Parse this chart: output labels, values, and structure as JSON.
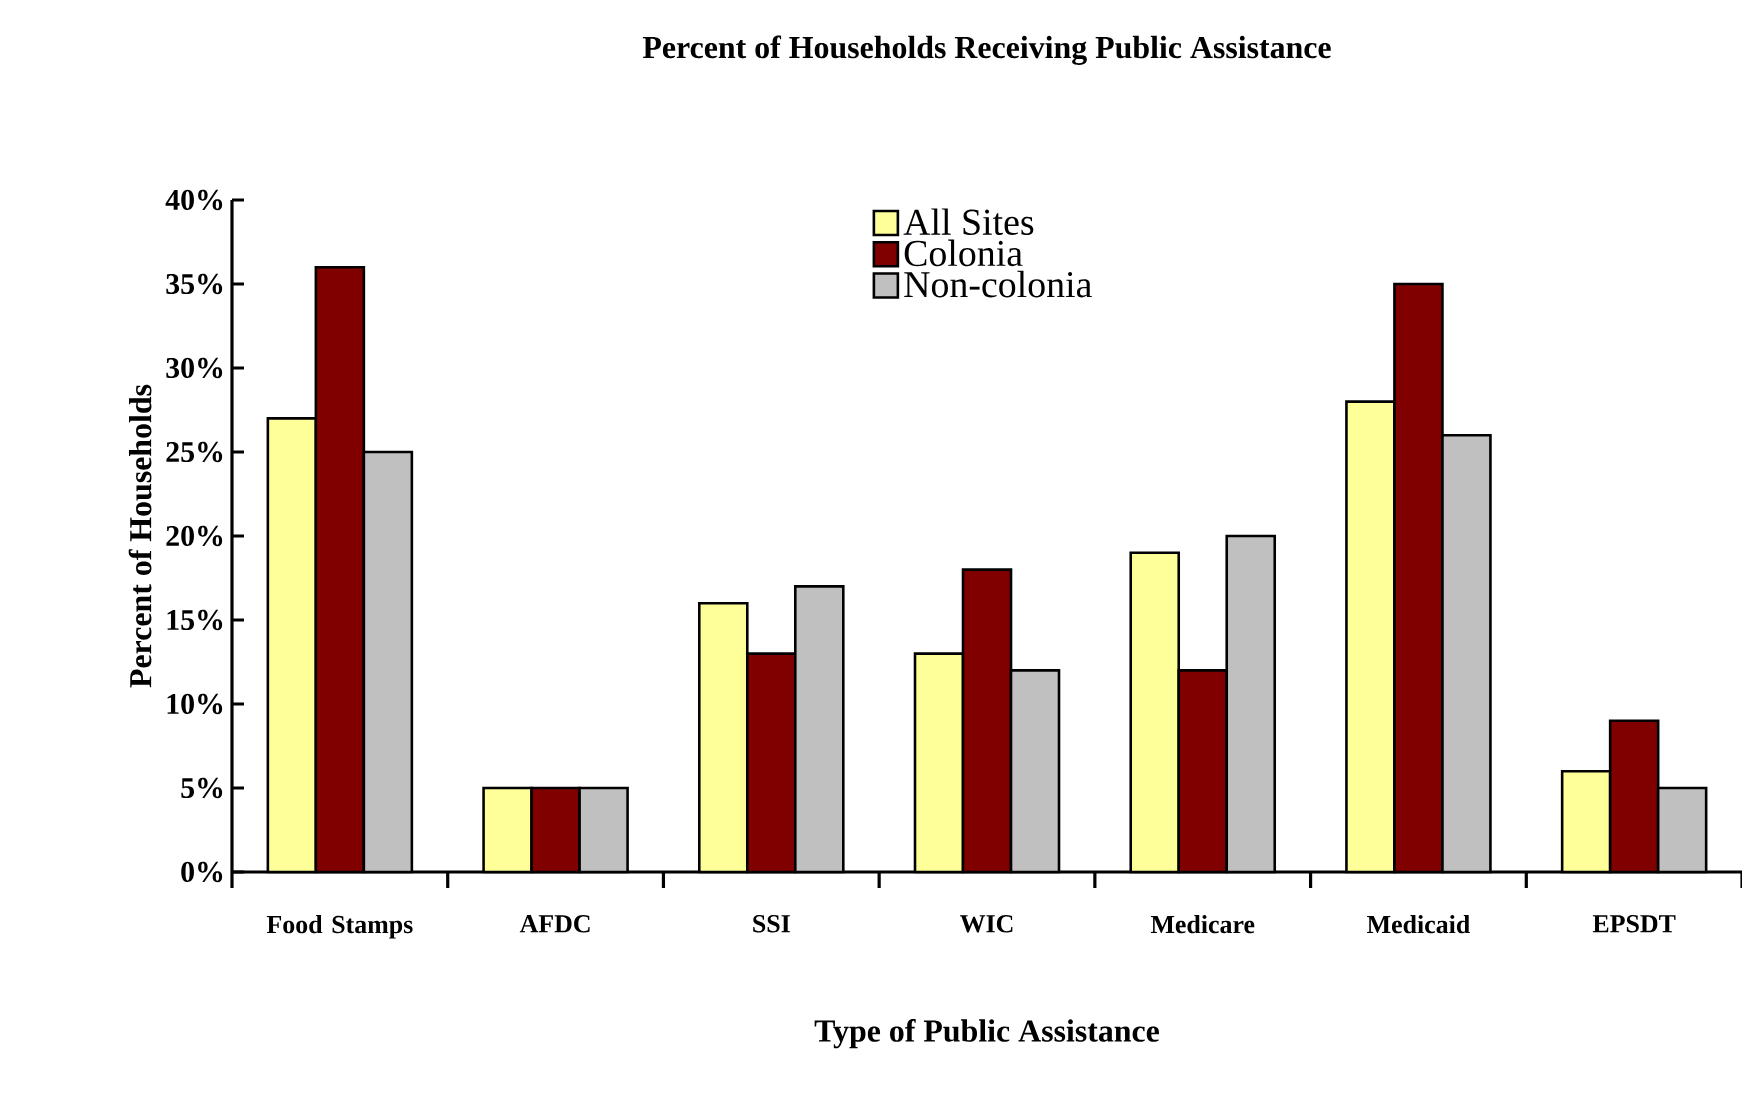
{
  "chart_data": {
    "type": "bar",
    "title": "Percent of Households Receiving Public Assistance",
    "xlabel": "Type of Public Assistance",
    "ylabel": "Percent of Households",
    "categories": [
      "Food Stamps",
      "AFDC",
      "SSI",
      "WIC",
      "Medicare",
      "Medicaid",
      "EPSDT"
    ],
    "series": [
      {
        "name": "All Sites",
        "color": "#ffff99",
        "values": [
          27,
          5,
          16,
          13,
          19,
          28,
          6
        ]
      },
      {
        "name": "Colonia",
        "color": "#800000",
        "values": [
          36,
          5,
          13,
          18,
          12,
          35,
          9
        ]
      },
      {
        "name": "Non-colonia",
        "color": "#c0c0c0",
        "values": [
          25,
          5,
          17,
          12,
          20,
          26,
          5
        ]
      }
    ],
    "ylim": [
      0,
      40
    ],
    "yticks": [
      {
        "value": 0,
        "label": "0%"
      },
      {
        "value": 5,
        "label": "5%"
      },
      {
        "value": 10,
        "label": "10%"
      },
      {
        "value": 15,
        "label": "15%"
      },
      {
        "value": 20,
        "label": "20%"
      },
      {
        "value": 25,
        "label": "25%"
      },
      {
        "value": 30,
        "label": "30%"
      },
      {
        "value": 35,
        "label": "35%"
      },
      {
        "value": 40,
        "label": "40%"
      }
    ],
    "grid": false,
    "legend": "top"
  }
}
